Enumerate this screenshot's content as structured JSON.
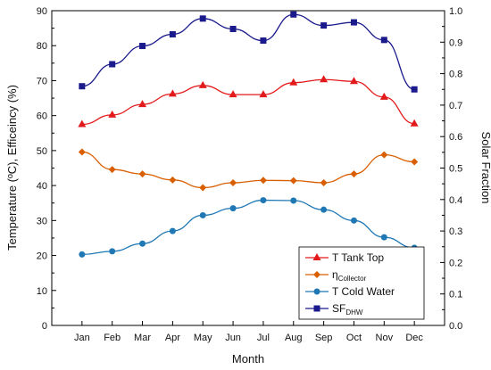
{
  "chart_data": {
    "type": "line",
    "categories": [
      "Jan",
      "Feb",
      "Mar",
      "Apr",
      "May",
      "Jun",
      "Jul",
      "Aug",
      "Sep",
      "Oct",
      "Nov",
      "Dec"
    ],
    "xlabel": "Month",
    "ylabel": "Temperature (ºC), Efficeincy (%)",
    "y2label": "Solar Fraction",
    "ylim": [
      0,
      90
    ],
    "yticks": [
      0,
      10,
      20,
      30,
      40,
      50,
      60,
      70,
      80,
      90
    ],
    "y2lim": [
      0,
      1.0
    ],
    "y2ticks": [
      "0.0",
      "0.1",
      "0.2",
      "0.3",
      "0.4",
      "0.5",
      "0.6",
      "0.7",
      "0.8",
      "0.9",
      "1.0"
    ],
    "grid": false,
    "legend_position": "bottom-right",
    "series": [
      {
        "name": "T Tank Top",
        "axis": "left",
        "marker": "triangle",
        "color": "#e31a1c",
        "values": [
          57.5,
          60.2,
          63.2,
          66.2,
          68.6,
          66.0,
          66.0,
          69.4,
          70.3,
          69.8,
          65.3,
          57.7
        ]
      },
      {
        "name": "η",
        "name_sub": "Collector",
        "axis": "left",
        "marker": "diamond",
        "color": "#d95f02",
        "values": [
          49.6,
          44.6,
          43.3,
          41.6,
          39.4,
          40.8,
          41.5,
          41.4,
          40.8,
          43.3,
          48.8,
          46.8
        ]
      },
      {
        "name": "T Cold Water",
        "axis": "left",
        "marker": "circle",
        "color": "#1f78b4",
        "values": [
          20.3,
          21.2,
          23.4,
          27.0,
          31.5,
          33.5,
          35.8,
          35.7,
          33.1,
          30.0,
          25.2,
          22.2
        ]
      },
      {
        "name": "SF",
        "name_sub": "DHW",
        "axis": "right",
        "marker": "square",
        "color": "#1a1a8c",
        "values": [
          0.76,
          0.83,
          0.888,
          0.925,
          0.975,
          0.942,
          0.905,
          0.988,
          0.953,
          0.963,
          0.907,
          0.75
        ]
      }
    ]
  }
}
